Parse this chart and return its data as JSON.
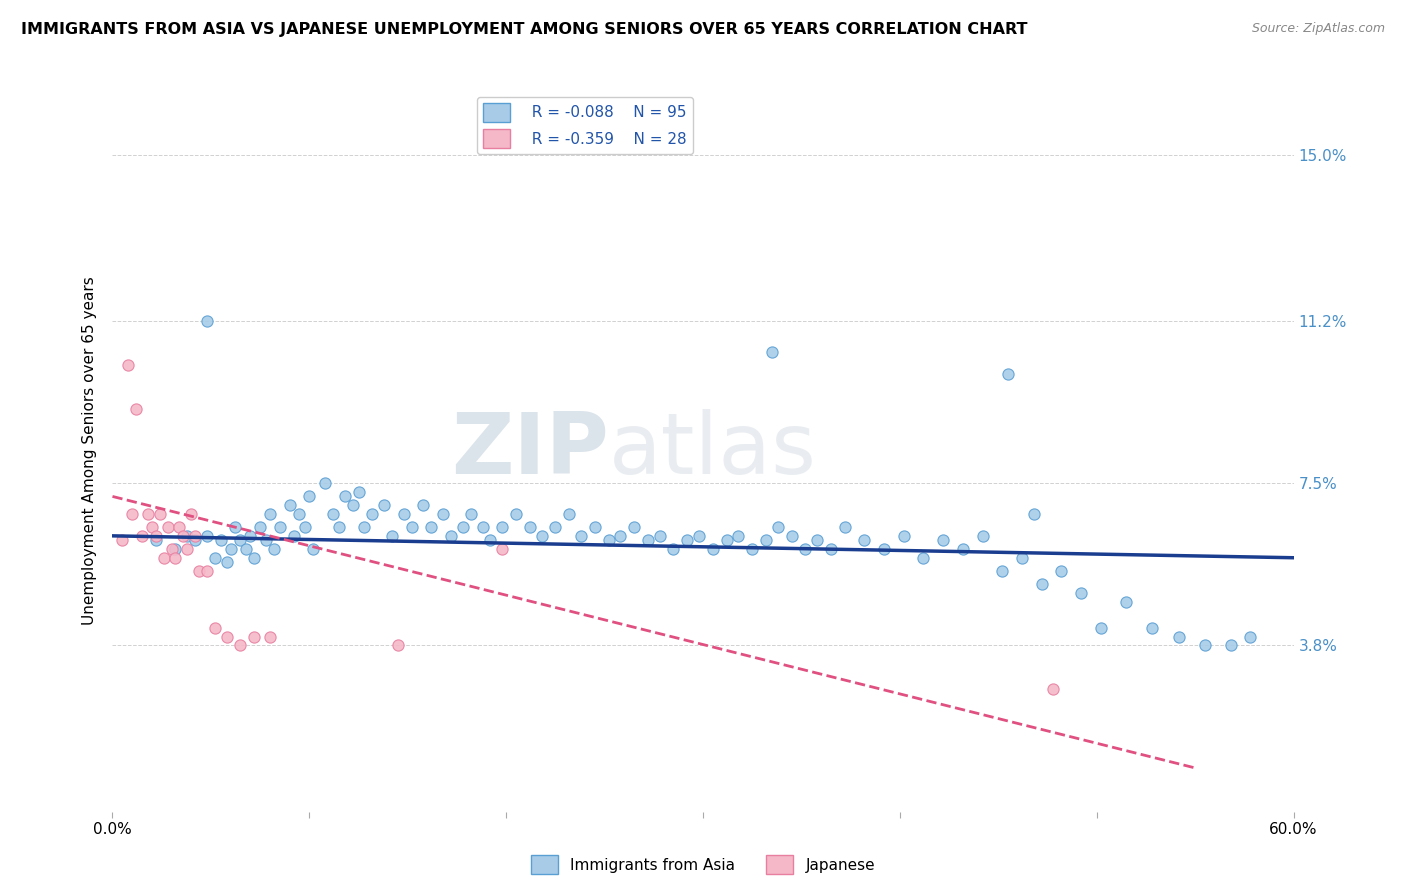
{
  "title": "IMMIGRANTS FROM ASIA VS JAPANESE UNEMPLOYMENT AMONG SENIORS OVER 65 YEARS CORRELATION CHART",
  "source": "Source: ZipAtlas.com",
  "ylabel": "Unemployment Among Seniors over 65 years",
  "xmin": 0.0,
  "xmax": 0.6,
  "ymin": 0.0,
  "ymax": 0.165,
  "yticks": [
    0.038,
    0.075,
    0.112,
    0.15
  ],
  "ytick_labels": [
    "3.8%",
    "7.5%",
    "11.2%",
    "15.0%"
  ],
  "xticks": [
    0.0,
    0.1,
    0.2,
    0.3,
    0.4,
    0.5,
    0.6
  ],
  "xtick_labels": [
    "0.0%",
    "",
    "",
    "",
    "",
    "",
    "60.0%"
  ],
  "legend_r1": "R = -0.088",
  "legend_n1": "N = 95",
  "legend_r2": "R = -0.359",
  "legend_n2": "N = 28",
  "color_blue": "#a8cce8",
  "color_pink": "#f5b8c8",
  "color_blue_edge": "#5a9fd4",
  "color_pink_edge": "#e87fa0",
  "color_trend_blue": "#1a3d8f",
  "color_trend_pink": "#e05080",
  "watermark_color": "#d0d8e8",
  "blue_trend_x0": 0.0,
  "blue_trend_y0": 0.063,
  "blue_trend_x1": 0.6,
  "blue_trend_y1": 0.058,
  "pink_trend_x0": 0.0,
  "pink_trend_y0": 0.072,
  "pink_trend_x1": 0.55,
  "pink_trend_y1": 0.01,
  "blue_x": [
    0.022,
    0.032,
    0.038,
    0.042,
    0.048,
    0.052,
    0.055,
    0.058,
    0.06,
    0.062,
    0.065,
    0.068,
    0.07,
    0.072,
    0.075,
    0.078,
    0.08,
    0.082,
    0.085,
    0.09,
    0.092,
    0.095,
    0.098,
    0.1,
    0.102,
    0.108,
    0.112,
    0.115,
    0.118,
    0.122,
    0.125,
    0.128,
    0.132,
    0.138,
    0.142,
    0.148,
    0.152,
    0.158,
    0.162,
    0.168,
    0.172,
    0.178,
    0.182,
    0.188,
    0.192,
    0.198,
    0.205,
    0.212,
    0.218,
    0.225,
    0.232,
    0.238,
    0.245,
    0.252,
    0.258,
    0.265,
    0.272,
    0.278,
    0.285,
    0.292,
    0.298,
    0.305,
    0.312,
    0.318,
    0.325,
    0.332,
    0.338,
    0.345,
    0.352,
    0.358,
    0.365,
    0.372,
    0.382,
    0.392,
    0.402,
    0.412,
    0.422,
    0.432,
    0.442,
    0.452,
    0.462,
    0.472,
    0.482,
    0.492,
    0.502,
    0.515,
    0.528,
    0.542,
    0.555,
    0.568,
    0.578,
    0.468,
    0.335,
    0.048,
    0.455
  ],
  "blue_y": [
    0.062,
    0.06,
    0.063,
    0.062,
    0.063,
    0.058,
    0.062,
    0.057,
    0.06,
    0.065,
    0.062,
    0.06,
    0.063,
    0.058,
    0.065,
    0.062,
    0.068,
    0.06,
    0.065,
    0.07,
    0.063,
    0.068,
    0.065,
    0.072,
    0.06,
    0.075,
    0.068,
    0.065,
    0.072,
    0.07,
    0.073,
    0.065,
    0.068,
    0.07,
    0.063,
    0.068,
    0.065,
    0.07,
    0.065,
    0.068,
    0.063,
    0.065,
    0.068,
    0.065,
    0.062,
    0.065,
    0.068,
    0.065,
    0.063,
    0.065,
    0.068,
    0.063,
    0.065,
    0.062,
    0.063,
    0.065,
    0.062,
    0.063,
    0.06,
    0.062,
    0.063,
    0.06,
    0.062,
    0.063,
    0.06,
    0.062,
    0.065,
    0.063,
    0.06,
    0.062,
    0.06,
    0.065,
    0.062,
    0.06,
    0.063,
    0.058,
    0.062,
    0.06,
    0.063,
    0.055,
    0.058,
    0.052,
    0.055,
    0.05,
    0.042,
    0.048,
    0.042,
    0.04,
    0.038,
    0.038,
    0.04,
    0.068,
    0.105,
    0.112,
    0.1
  ],
  "pink_x": [
    0.005,
    0.008,
    0.01,
    0.012,
    0.015,
    0.018,
    0.02,
    0.022,
    0.024,
    0.026,
    0.028,
    0.03,
    0.032,
    0.034,
    0.036,
    0.038,
    0.04,
    0.042,
    0.044,
    0.048,
    0.052,
    0.058,
    0.065,
    0.072,
    0.08,
    0.145,
    0.198,
    0.478
  ],
  "pink_y": [
    0.062,
    0.102,
    0.068,
    0.092,
    0.063,
    0.068,
    0.065,
    0.063,
    0.068,
    0.058,
    0.065,
    0.06,
    0.058,
    0.065,
    0.063,
    0.06,
    0.068,
    0.063,
    0.055,
    0.055,
    0.042,
    0.04,
    0.038,
    0.04,
    0.04,
    0.038,
    0.06,
    0.028
  ]
}
